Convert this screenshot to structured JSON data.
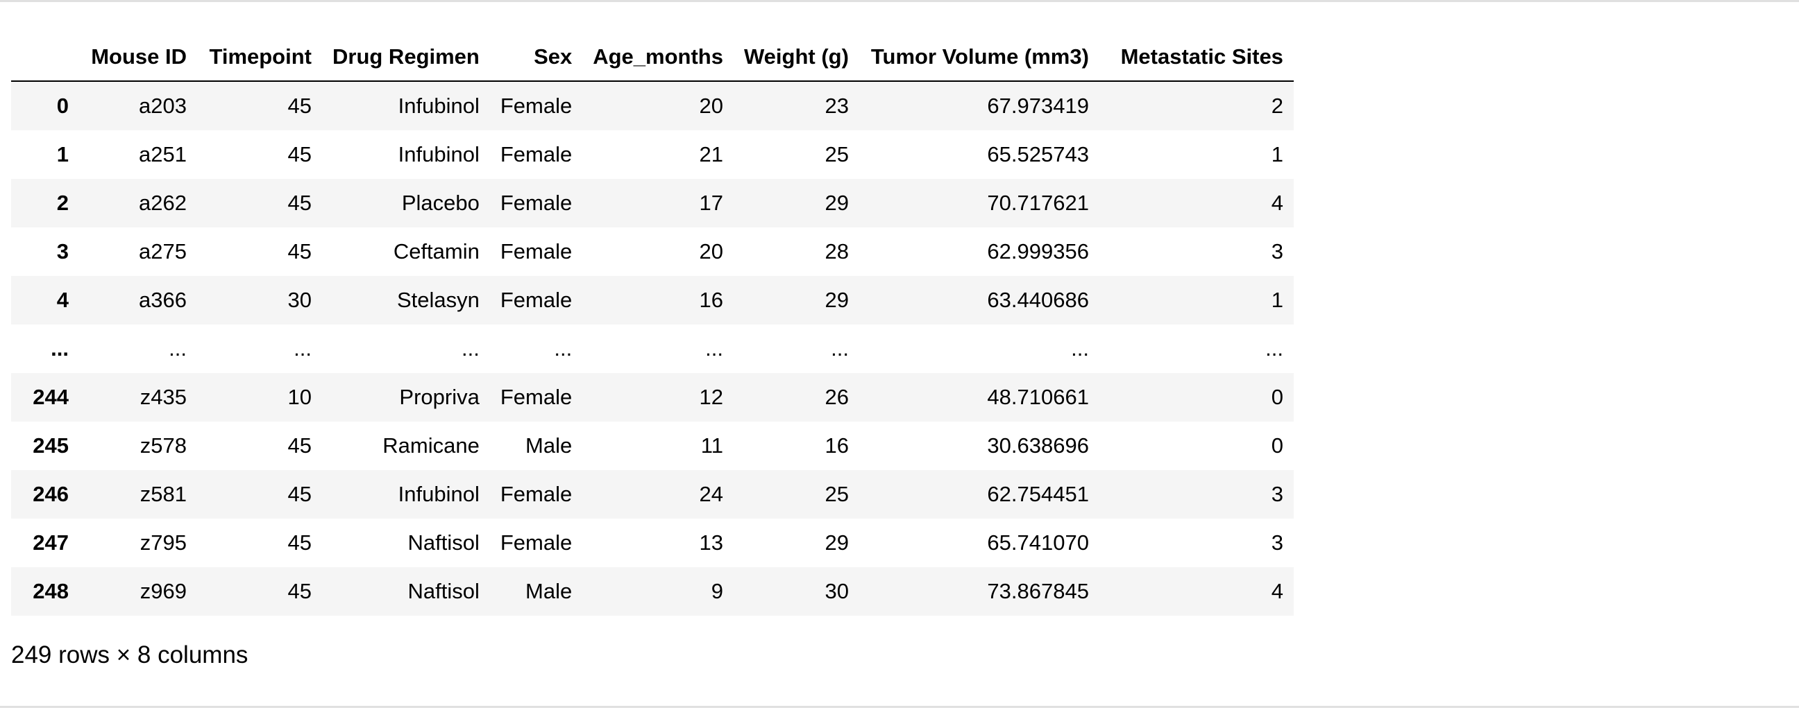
{
  "table": {
    "index_header": "",
    "columns": [
      "Mouse ID",
      "Timepoint",
      "Drug Regimen",
      "Sex",
      "Age_months",
      "Weight (g)",
      "Tumor Volume (mm3)",
      "Metastatic Sites"
    ],
    "rows": [
      {
        "index": "0",
        "cells": [
          "a203",
          "45",
          "Infubinol",
          "Female",
          "20",
          "23",
          "67.973419",
          "2"
        ]
      },
      {
        "index": "1",
        "cells": [
          "a251",
          "45",
          "Infubinol",
          "Female",
          "21",
          "25",
          "65.525743",
          "1"
        ]
      },
      {
        "index": "2",
        "cells": [
          "a262",
          "45",
          "Placebo",
          "Female",
          "17",
          "29",
          "70.717621",
          "4"
        ]
      },
      {
        "index": "3",
        "cells": [
          "a275",
          "45",
          "Ceftamin",
          "Female",
          "20",
          "28",
          "62.999356",
          "3"
        ]
      },
      {
        "index": "4",
        "cells": [
          "a366",
          "30",
          "Stelasyn",
          "Female",
          "16",
          "29",
          "63.440686",
          "1"
        ]
      },
      {
        "index": "...",
        "cells": [
          "...",
          "...",
          "...",
          "...",
          "...",
          "...",
          "...",
          "..."
        ]
      },
      {
        "index": "244",
        "cells": [
          "z435",
          "10",
          "Propriva",
          "Female",
          "12",
          "26",
          "48.710661",
          "0"
        ]
      },
      {
        "index": "245",
        "cells": [
          "z578",
          "45",
          "Ramicane",
          "Male",
          "11",
          "16",
          "30.638696",
          "0"
        ]
      },
      {
        "index": "246",
        "cells": [
          "z581",
          "45",
          "Infubinol",
          "Female",
          "24",
          "25",
          "62.754451",
          "3"
        ]
      },
      {
        "index": "247",
        "cells": [
          "z795",
          "45",
          "Naftisol",
          "Female",
          "13",
          "29",
          "65.741070",
          "3"
        ]
      },
      {
        "index": "248",
        "cells": [
          "z969",
          "45",
          "Naftisol",
          "Male",
          "9",
          "30",
          "73.867845",
          "4"
        ]
      }
    ]
  },
  "dimensions_text": "249 rows × 8 columns",
  "colors": {
    "stripe": "#f5f5f5",
    "header_rule": "#000000",
    "cell_rule": "#e0e0e0"
  }
}
